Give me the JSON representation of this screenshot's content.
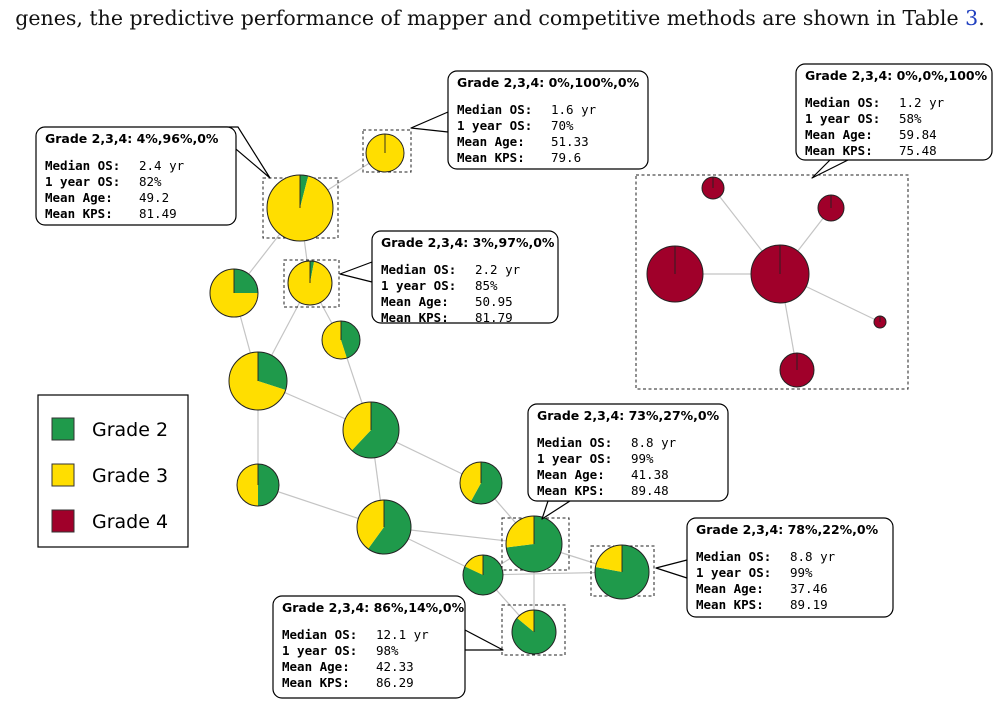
{
  "caption": {
    "text_before": "genes, the predictive performance of mapper and competitive methods are shown in Table ",
    "ref": "3",
    "text_after": "."
  },
  "colors": {
    "grade2": "#1f9a4b",
    "grade3": "#ffde00",
    "grade4": "#a0002a",
    "edge": "#c4c4c4"
  },
  "legend": {
    "items": [
      {
        "label": "Grade 2",
        "color": "#1f9a4b"
      },
      {
        "label": "Grade 3",
        "color": "#ffde00"
      },
      {
        "label": "Grade 4",
        "color": "#a0002a"
      }
    ]
  },
  "graph": {
    "nodes": [
      {
        "id": "A",
        "g2": 0.0,
        "g3": 1.0,
        "g4": 0.0
      },
      {
        "id": "B",
        "g2": 0.04,
        "g3": 0.96,
        "g4": 0.0
      },
      {
        "id": "C",
        "g2": 0.03,
        "g3": 0.97,
        "g4": 0.0
      },
      {
        "id": "D",
        "g2": 0.25,
        "g3": 0.75,
        "g4": 0.0
      },
      {
        "id": "E",
        "g2": 0.45,
        "g3": 0.55,
        "g4": 0.0
      },
      {
        "id": "F",
        "g2": 0.3,
        "g3": 0.7,
        "g4": 0.0
      },
      {
        "id": "G",
        "g2": 0.62,
        "g3": 0.38,
        "g4": 0.0
      },
      {
        "id": "H",
        "g2": 0.5,
        "g3": 0.5,
        "g4": 0.0
      },
      {
        "id": "I",
        "g2": 0.58,
        "g3": 0.42,
        "g4": 0.0
      },
      {
        "id": "J",
        "g2": 0.6,
        "g3": 0.4,
        "g4": 0.0
      },
      {
        "id": "K",
        "g2": 0.73,
        "g3": 0.27,
        "g4": 0.0
      },
      {
        "id": "L",
        "g2": 0.82,
        "g3": 0.18,
        "g4": 0.0
      },
      {
        "id": "M",
        "g2": 0.78,
        "g3": 0.22,
        "g4": 0.0
      },
      {
        "id": "N",
        "g2": 0.86,
        "g3": 0.14,
        "g4": 0.0
      },
      {
        "id": "R1",
        "g2": 0.0,
        "g3": 0.0,
        "g4": 1.0
      },
      {
        "id": "R2",
        "g2": 0.0,
        "g3": 0.0,
        "g4": 1.0
      },
      {
        "id": "R3",
        "g2": 0.0,
        "g3": 0.0,
        "g4": 1.0
      },
      {
        "id": "R4",
        "g2": 0.0,
        "g3": 0.0,
        "g4": 1.0
      },
      {
        "id": "R5",
        "g2": 0.0,
        "g3": 0.0,
        "g4": 1.0
      },
      {
        "id": "R6",
        "g2": 0.0,
        "g3": 0.0,
        "g4": 1.0
      }
    ],
    "edges": [
      [
        "A",
        "B"
      ],
      [
        "B",
        "C"
      ],
      [
        "B",
        "D"
      ],
      [
        "C",
        "E"
      ],
      [
        "C",
        "F"
      ],
      [
        "D",
        "F"
      ],
      [
        "E",
        "G"
      ],
      [
        "F",
        "G"
      ],
      [
        "F",
        "H"
      ],
      [
        "G",
        "J"
      ],
      [
        "H",
        "J"
      ],
      [
        "G",
        "I"
      ],
      [
        "J",
        "K"
      ],
      [
        "J",
        "L"
      ],
      [
        "I",
        "K"
      ],
      [
        "K",
        "L"
      ],
      [
        "K",
        "M"
      ],
      [
        "L",
        "M"
      ],
      [
        "K",
        "N"
      ],
      [
        "L",
        "N"
      ],
      [
        "R1",
        "R3"
      ],
      [
        "R2",
        "R3"
      ],
      [
        "R3",
        "R4"
      ],
      [
        "R3",
        "R5"
      ],
      [
        "R3",
        "R6"
      ]
    ]
  },
  "callouts": [
    {
      "target": "B",
      "header": "Grade 2,3,4: 4%,96%,0%",
      "rows": [
        [
          "Median OS:",
          "2.4 yr"
        ],
        [
          "1 year OS:",
          "82%"
        ],
        [
          "Mean Age:",
          "49.2"
        ],
        [
          "Mean KPS:",
          "81.49"
        ]
      ]
    },
    {
      "target": "A",
      "header": "Grade 2,3,4: 0%,100%,0%",
      "rows": [
        [
          "Median OS:",
          "1.6 yr"
        ],
        [
          "1 year OS:",
          "70%"
        ],
        [
          "Mean Age:",
          "51.33"
        ],
        [
          "Mean KPS:",
          "79.6"
        ]
      ]
    },
    {
      "target": "C",
      "header": "Grade 2,3,4: 3%,97%,0%",
      "rows": [
        [
          "Median OS:",
          "2.2 yr"
        ],
        [
          "1 year OS:",
          "85%"
        ],
        [
          "Mean Age:",
          "50.95"
        ],
        [
          "Mean KPS:",
          "81.79"
        ]
      ]
    },
    {
      "target": "R",
      "header": "Grade 2,3,4: 0%,0%,100%",
      "rows": [
        [
          "Median OS:",
          "1.2 yr"
        ],
        [
          "1 year OS:",
          "58%"
        ],
        [
          "Mean Age:",
          "59.84"
        ],
        [
          "Mean KPS:",
          "75.48"
        ]
      ]
    },
    {
      "target": "K",
      "header": "Grade 2,3,4: 73%,27%,0%",
      "rows": [
        [
          "Median OS:",
          "8.8 yr"
        ],
        [
          "1 year OS:",
          "99%"
        ],
        [
          "Mean Age:",
          "41.38"
        ],
        [
          "Mean KPS:",
          "89.48"
        ]
      ]
    },
    {
      "target": "M",
      "header": "Grade 2,3,4: 78%,22%,0%",
      "rows": [
        [
          "Median OS:",
          "8.8 yr"
        ],
        [
          "1 year OS:",
          "99%"
        ],
        [
          "Mean Age:",
          "37.46"
        ],
        [
          "Mean KPS:",
          "89.19"
        ]
      ]
    },
    {
      "target": "N",
      "header": "Grade 2,3,4: 86%,14%,0%",
      "rows": [
        [
          "Median OS:",
          "12.1 yr"
        ],
        [
          "1 year OS:",
          "98%"
        ],
        [
          "Mean Age:",
          "42.33"
        ],
        [
          "Mean KPS:",
          "86.29"
        ]
      ]
    }
  ]
}
